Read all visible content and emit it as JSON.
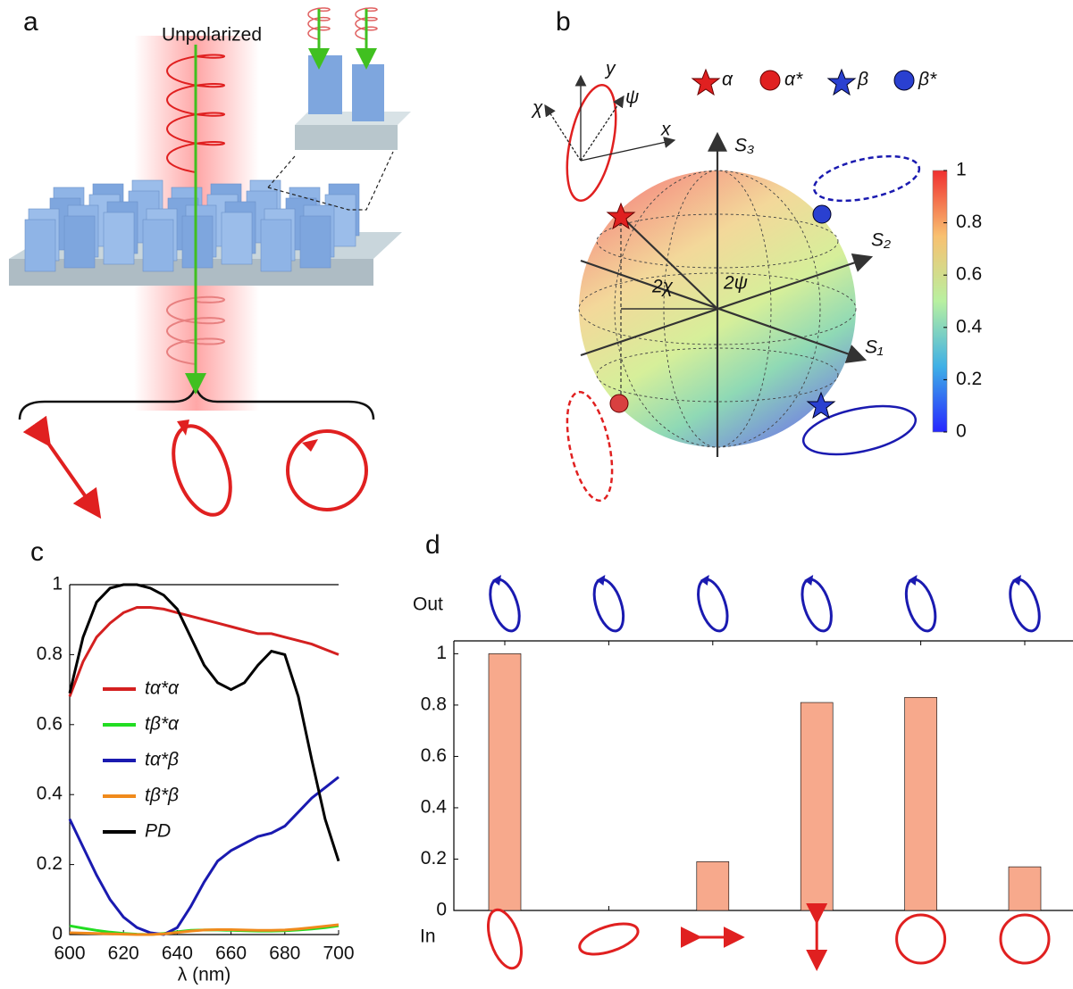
{
  "panel_labels": [
    "a",
    "b",
    "c",
    "d"
  ],
  "panel_a": {
    "label": "Unpolarized"
  },
  "panel_b": {
    "stokes_axes": [
      "S₃",
      "S₂",
      "S₁"
    ],
    "angles": [
      "2χ",
      "2ψ"
    ],
    "inset_labels": [
      "χ",
      "ψ",
      "x",
      "y"
    ],
    "legend": [
      "α",
      "α*",
      "β",
      "β*"
    ]
  },
  "chart_data": [
    {
      "type": "line",
      "xlabel": "λ (nm)",
      "x": [
        600,
        605,
        610,
        615,
        620,
        625,
        630,
        635,
        640,
        645,
        650,
        655,
        660,
        665,
        670,
        675,
        680,
        685,
        690,
        695,
        700
      ],
      "xlim": [
        600,
        700
      ],
      "xticks": [
        600,
        620,
        640,
        660,
        680,
        700
      ],
      "ylim": [
        0,
        1
      ],
      "yticks": [
        0,
        0.2,
        0.4,
        0.6,
        0.8,
        1
      ],
      "series": [
        {
          "name": "tα*α",
          "color": "#d42020",
          "values": [
            0.68,
            0.78,
            0.85,
            0.89,
            0.92,
            0.935,
            0.935,
            0.93,
            0.92,
            0.91,
            0.9,
            0.89,
            0.88,
            0.87,
            0.86,
            0.86,
            0.85,
            0.84,
            0.83,
            0.815,
            0.8
          ]
        },
        {
          "name": "tβ*α",
          "color": "#22dd22",
          "values": [
            0.025,
            0.018,
            0.012,
            0.007,
            0.003,
            0.001,
            0.0,
            0.003,
            0.008,
            0.012,
            0.013,
            0.013,
            0.012,
            0.011,
            0.01,
            0.01,
            0.011,
            0.013,
            0.016,
            0.02,
            0.025
          ]
        },
        {
          "name": "tα*β",
          "color": "#1a1ab0",
          "values": [
            0.33,
            0.25,
            0.17,
            0.1,
            0.05,
            0.02,
            0.005,
            0.0,
            0.02,
            0.08,
            0.15,
            0.21,
            0.24,
            0.26,
            0.28,
            0.29,
            0.31,
            0.35,
            0.39,
            0.42,
            0.45
          ]
        },
        {
          "name": "tβ*β",
          "color": "#f08a1c",
          "values": [
            0.005,
            0.004,
            0.003,
            0.002,
            0.001,
            0.0,
            0.0,
            0.002,
            0.006,
            0.01,
            0.013,
            0.014,
            0.014,
            0.013,
            0.012,
            0.012,
            0.013,
            0.016,
            0.02,
            0.024,
            0.028
          ]
        },
        {
          "name": "PD",
          "color": "#000000",
          "values": [
            0.69,
            0.85,
            0.95,
            0.99,
            1.0,
            1.0,
            0.99,
            0.97,
            0.93,
            0.85,
            0.77,
            0.72,
            0.7,
            0.72,
            0.77,
            0.81,
            0.8,
            0.68,
            0.5,
            0.33,
            0.21
          ]
        }
      ]
    },
    {
      "type": "bar",
      "annotations": [
        "Out",
        "In"
      ],
      "categories": [
        null,
        null,
        null,
        null,
        null,
        null
      ],
      "values": [
        1.0,
        0,
        0.19,
        0.81,
        0.83,
        0.17
      ],
      "color": "#f7a98c",
      "ylim": [
        0,
        1.05
      ],
      "yticks": [
        0,
        0.2,
        0.4,
        0.6,
        0.8,
        1
      ]
    },
    {
      "type": "colorbar",
      "ylim": [
        0,
        1
      ],
      "yticks": [
        0,
        0.2,
        0.4,
        0.6,
        0.8,
        1
      ]
    }
  ]
}
